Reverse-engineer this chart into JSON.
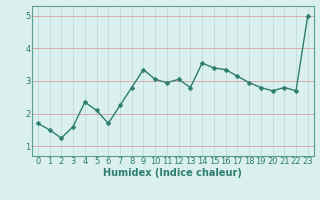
{
  "x": [
    0,
    1,
    2,
    3,
    4,
    5,
    6,
    7,
    8,
    9,
    10,
    11,
    12,
    13,
    14,
    15,
    16,
    17,
    18,
    19,
    20,
    21,
    22,
    23
  ],
  "y": [
    1.7,
    1.5,
    1.25,
    1.6,
    2.35,
    2.1,
    1.7,
    2.25,
    2.8,
    3.35,
    3.05,
    2.95,
    3.05,
    2.8,
    3.55,
    3.4,
    3.35,
    3.15,
    2.95,
    2.8,
    2.7,
    2.8,
    2.7,
    5.0
  ],
  "xlabel": "Humidex (Indice chaleur)",
  "xlim": [
    -0.5,
    23.5
  ],
  "ylim": [
    0.7,
    5.3
  ],
  "yticks": [
    1,
    2,
    3,
    4,
    5
  ],
  "xticks": [
    0,
    1,
    2,
    3,
    4,
    5,
    6,
    7,
    8,
    9,
    10,
    11,
    12,
    13,
    14,
    15,
    16,
    17,
    18,
    19,
    20,
    21,
    22,
    23
  ],
  "line_color": "#2e7d6e",
  "marker_color": "#2e7d6e",
  "bg_color": "#d9f0ee",
  "grid_color": "#c0dcd8",
  "tick_label_color": "#2e7d6e",
  "xlabel_color": "#2e7d6e",
  "xlabel_fontsize": 7,
  "tick_fontsize": 6,
  "line_width": 1.0,
  "marker_size": 2.5
}
